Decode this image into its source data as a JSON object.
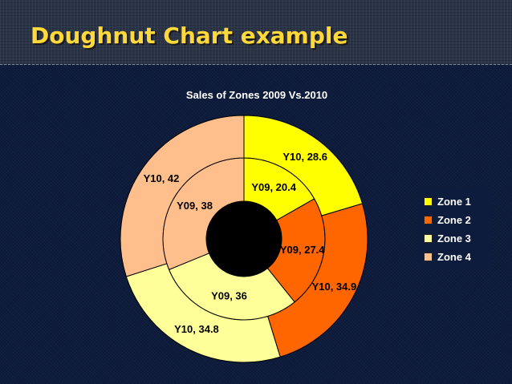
{
  "slide": {
    "title": "Doughnut Chart example"
  },
  "chart_data": {
    "type": "doughnut",
    "title": "Sales of Zones 2009 Vs.2010",
    "categories": [
      "Zone 1",
      "Zone 2",
      "Zone 3",
      "Zone 4"
    ],
    "colors": [
      "#ffff00",
      "#ff6600",
      "#ffff99",
      "#ffbf8c"
    ],
    "series": [
      {
        "name": "Y09",
        "values": [
          20.4,
          27.4,
          36,
          38
        ]
      },
      {
        "name": "Y10",
        "values": [
          28.6,
          34.9,
          34.8,
          42
        ]
      }
    ],
    "data_labels": [
      [
        "Y09, 20.4",
        "Y09, 27.4",
        "Y09, 36",
        "Y09, 38"
      ],
      [
        "Y10, 28.6",
        "Y10, 34.9",
        "Y10, 34.8",
        "Y10, 42"
      ]
    ],
    "legend": {
      "position": "right",
      "items": [
        "Zone 1",
        "Zone 2",
        "Zone 3",
        "Zone 4"
      ]
    }
  }
}
